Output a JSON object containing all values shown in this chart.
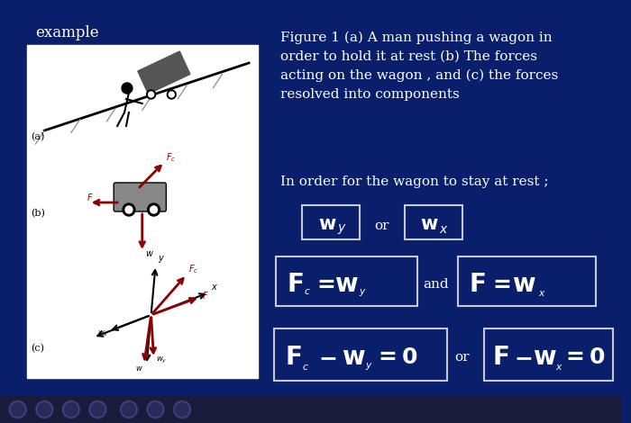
{
  "bg_color": "#0a1f6b",
  "text_color": "#ffffff",
  "box_color": "#c8c8d0",
  "title_text": "example",
  "figure_caption": "Figure 1 (a) A man pushing a wagon in\norder to hold it at rest (b) The forces\nacting on the wagon , and (c) the forces\nresolved into components",
  "rest_text": "In order for the wagon to stay at rest ;",
  "bottom_bar_color": "#1a1a2e",
  "nav_bar_color": "#222244"
}
